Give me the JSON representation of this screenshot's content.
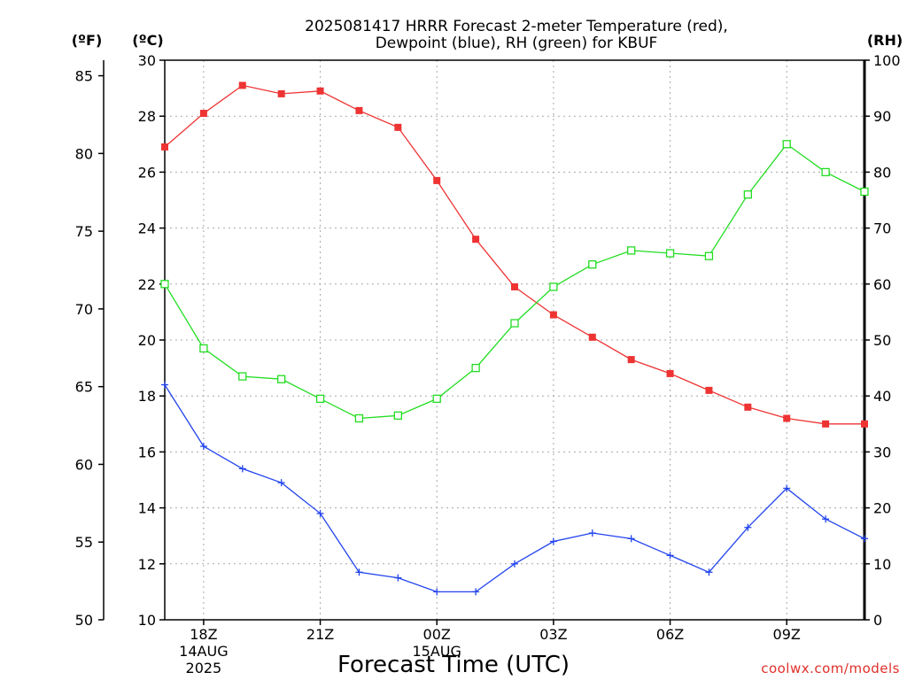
{
  "chart_data": {
    "type": "line",
    "title": [
      "2025081417 HRRR Forecast 2-meter Temperature (red),",
      "Dewpoint (blue), RH (green) for KBUF"
    ],
    "xlabel": "Forecast Time (UTC)",
    "units": {
      "fahrenheit": "(ºF)",
      "celsius": "(ºC)",
      "rh": "(RH)"
    },
    "credit": "coolwx.com/models",
    "x_hours_utc": [
      17,
      18,
      19,
      20,
      21,
      22,
      23,
      24,
      25,
      26,
      27,
      28,
      29,
      30,
      31,
      32,
      33,
      34,
      35
    ],
    "x_ticks": [
      {
        "hour": 18,
        "lines": [
          "18Z",
          "14AUG",
          "2025"
        ]
      },
      {
        "hour": 21,
        "lines": [
          "21Z"
        ]
      },
      {
        "hour": 24,
        "lines": [
          "00Z",
          "15AUG"
        ]
      },
      {
        "hour": 27,
        "lines": [
          "03Z"
        ]
      },
      {
        "hour": 30,
        "lines": [
          "06Z"
        ]
      },
      {
        "hour": 33,
        "lines": [
          "09Z"
        ]
      }
    ],
    "x_range": [
      17,
      35
    ],
    "celsius_axis": {
      "range": [
        10,
        30
      ],
      "ticks": [
        10,
        12,
        14,
        16,
        18,
        20,
        22,
        24,
        26,
        28,
        30
      ]
    },
    "fahrenheit_axis": {
      "range": [
        50,
        86
      ],
      "ticks": [
        50,
        55,
        60,
        65,
        70,
        75,
        80,
        85
      ]
    },
    "rh_axis": {
      "range": [
        0,
        100
      ],
      "ticks": [
        0,
        10,
        20,
        30,
        40,
        50,
        60,
        70,
        80,
        90,
        100
      ]
    },
    "grid": true,
    "series": [
      {
        "key": "temperature",
        "axis": "celsius",
        "color": "#ee3333",
        "marker": "filled-square",
        "values": [
          26.9,
          28.1,
          29.1,
          28.8,
          28.9,
          28.2,
          27.6,
          25.7,
          23.6,
          21.9,
          20.9,
          20.1,
          19.3,
          18.8,
          18.2,
          17.6,
          17.2,
          17.0,
          17.0
        ]
      },
      {
        "key": "dewpoint",
        "axis": "celsius",
        "color": "#2244ee",
        "marker": "plus",
        "values": [
          18.4,
          16.2,
          15.4,
          14.9,
          13.8,
          11.7,
          11.5,
          11.0,
          11.0,
          12.0,
          12.8,
          13.1,
          12.9,
          12.3,
          11.7,
          13.3,
          14.7,
          13.6,
          12.9
        ]
      },
      {
        "key": "rh",
        "axis": "rh",
        "color": "#22dd22",
        "marker": "open-square",
        "values": [
          60,
          48.5,
          43.5,
          43,
          39.5,
          36,
          36.5,
          39.5,
          45,
          53,
          59.5,
          63.5,
          66,
          65.5,
          65,
          76,
          85,
          80,
          76.5
        ]
      }
    ]
  }
}
